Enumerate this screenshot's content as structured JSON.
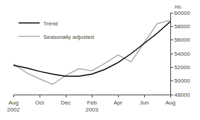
{
  "chart_data": {
    "type": "line",
    "categories": [
      "Aug\n2002",
      null,
      "Oct",
      null,
      "Dec",
      null,
      "Feb\n2003",
      null,
      "Apr",
      null,
      "Jun",
      null,
      "Aug"
    ],
    "series": [
      {
        "name": "Seasonally adjusted",
        "color": "#aaaaaa",
        "values": [
          52500,
          51200,
          50300,
          49500,
          50800,
          51800,
          51500,
          52600,
          53800,
          52800,
          55600,
          58400,
          58900
        ]
      },
      {
        "name": "Trend",
        "color": "#000000",
        "values": [
          52300,
          51900,
          51400,
          51000,
          50700,
          50700,
          51000,
          51700,
          52700,
          54000,
          55500,
          57000,
          58700
        ]
      }
    ],
    "ylabel": "no.",
    "ylim": [
      48000,
      60000
    ],
    "yticks": [
      48000,
      50000,
      52000,
      54000,
      56000,
      58000,
      60000
    ],
    "grid": false,
    "legend": "upper left"
  }
}
